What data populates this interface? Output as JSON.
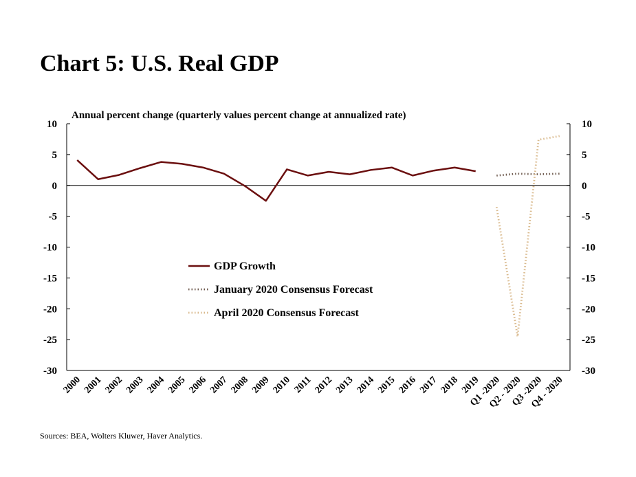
{
  "title": "Chart 5: U.S. Real GDP",
  "source": "Sources: BEA, Wolters Kluwer, Haver Analytics.",
  "chart_data": {
    "type": "line",
    "subtitle": "Annual percent change (quarterly values percent change at annualized rate)",
    "categories": [
      "2000",
      "2001",
      "2002",
      "2003",
      "2004",
      "2005",
      "2006",
      "2007",
      "2008",
      "2009",
      "2010",
      "2011",
      "2012",
      "2013",
      "2014",
      "2015",
      "2016",
      "2017",
      "2018",
      "2019",
      "Q1 -2020",
      "Q2 - 2020",
      "Q3 -2020",
      "Q4 - 2020"
    ],
    "ylim": [
      -30,
      10
    ],
    "y_ticks": [
      10,
      5,
      0,
      -5,
      -10,
      -15,
      -20,
      -25,
      -30
    ],
    "y_tick_labels": [
      "10",
      "5",
      "0",
      "-5",
      "-10",
      "-15",
      "-20",
      "-25",
      "-30"
    ],
    "axes": "left and right (mirrored)",
    "grid": false,
    "legend_position": "center-left",
    "series": [
      {
        "name": "GDP Growth",
        "style": "solid",
        "color": "#6b0f0f",
        "points": [
          {
            "x": "2000",
            "y": 4.1
          },
          {
            "x": "2001",
            "y": 1.0
          },
          {
            "x": "2002",
            "y": 1.7
          },
          {
            "x": "2003",
            "y": 2.8
          },
          {
            "x": "2004",
            "y": 3.8
          },
          {
            "x": "2005",
            "y": 3.5
          },
          {
            "x": "2006",
            "y": 2.9
          },
          {
            "x": "2007",
            "y": 1.9
          },
          {
            "x": "2008",
            "y": -0.1
          },
          {
            "x": "2009",
            "y": -2.5
          },
          {
            "x": "2010",
            "y": 2.6
          },
          {
            "x": "2011",
            "y": 1.6
          },
          {
            "x": "2012",
            "y": 2.2
          },
          {
            "x": "2013",
            "y": 1.8
          },
          {
            "x": "2014",
            "y": 2.5
          },
          {
            "x": "2015",
            "y": 2.9
          },
          {
            "x": "2016",
            "y": 1.6
          },
          {
            "x": "2017",
            "y": 2.4
          },
          {
            "x": "2018",
            "y": 2.9
          },
          {
            "x": "2019",
            "y": 2.3
          }
        ]
      },
      {
        "name": "January 2020 Consensus Forecast",
        "style": "dotted",
        "color": "#6e5a4e",
        "points": [
          {
            "x": "Q1 -2020",
            "y": 1.6
          },
          {
            "x": "Q2 - 2020",
            "y": 1.9
          },
          {
            "x": "Q3 -2020",
            "y": 1.8
          },
          {
            "x": "Q4 - 2020",
            "y": 1.9
          }
        ]
      },
      {
        "name": "April 2020 Consensus Forecast",
        "style": "dotted",
        "color": "#d9b98c",
        "points": [
          {
            "x": "Q1 -2020",
            "y": -3.5
          },
          {
            "x": "Q2 - 2020",
            "y": -24.5
          },
          {
            "x": "Q3 -2020",
            "y": 7.4
          },
          {
            "x": "Q4 - 2020",
            "y": 8.0
          }
        ]
      }
    ]
  }
}
